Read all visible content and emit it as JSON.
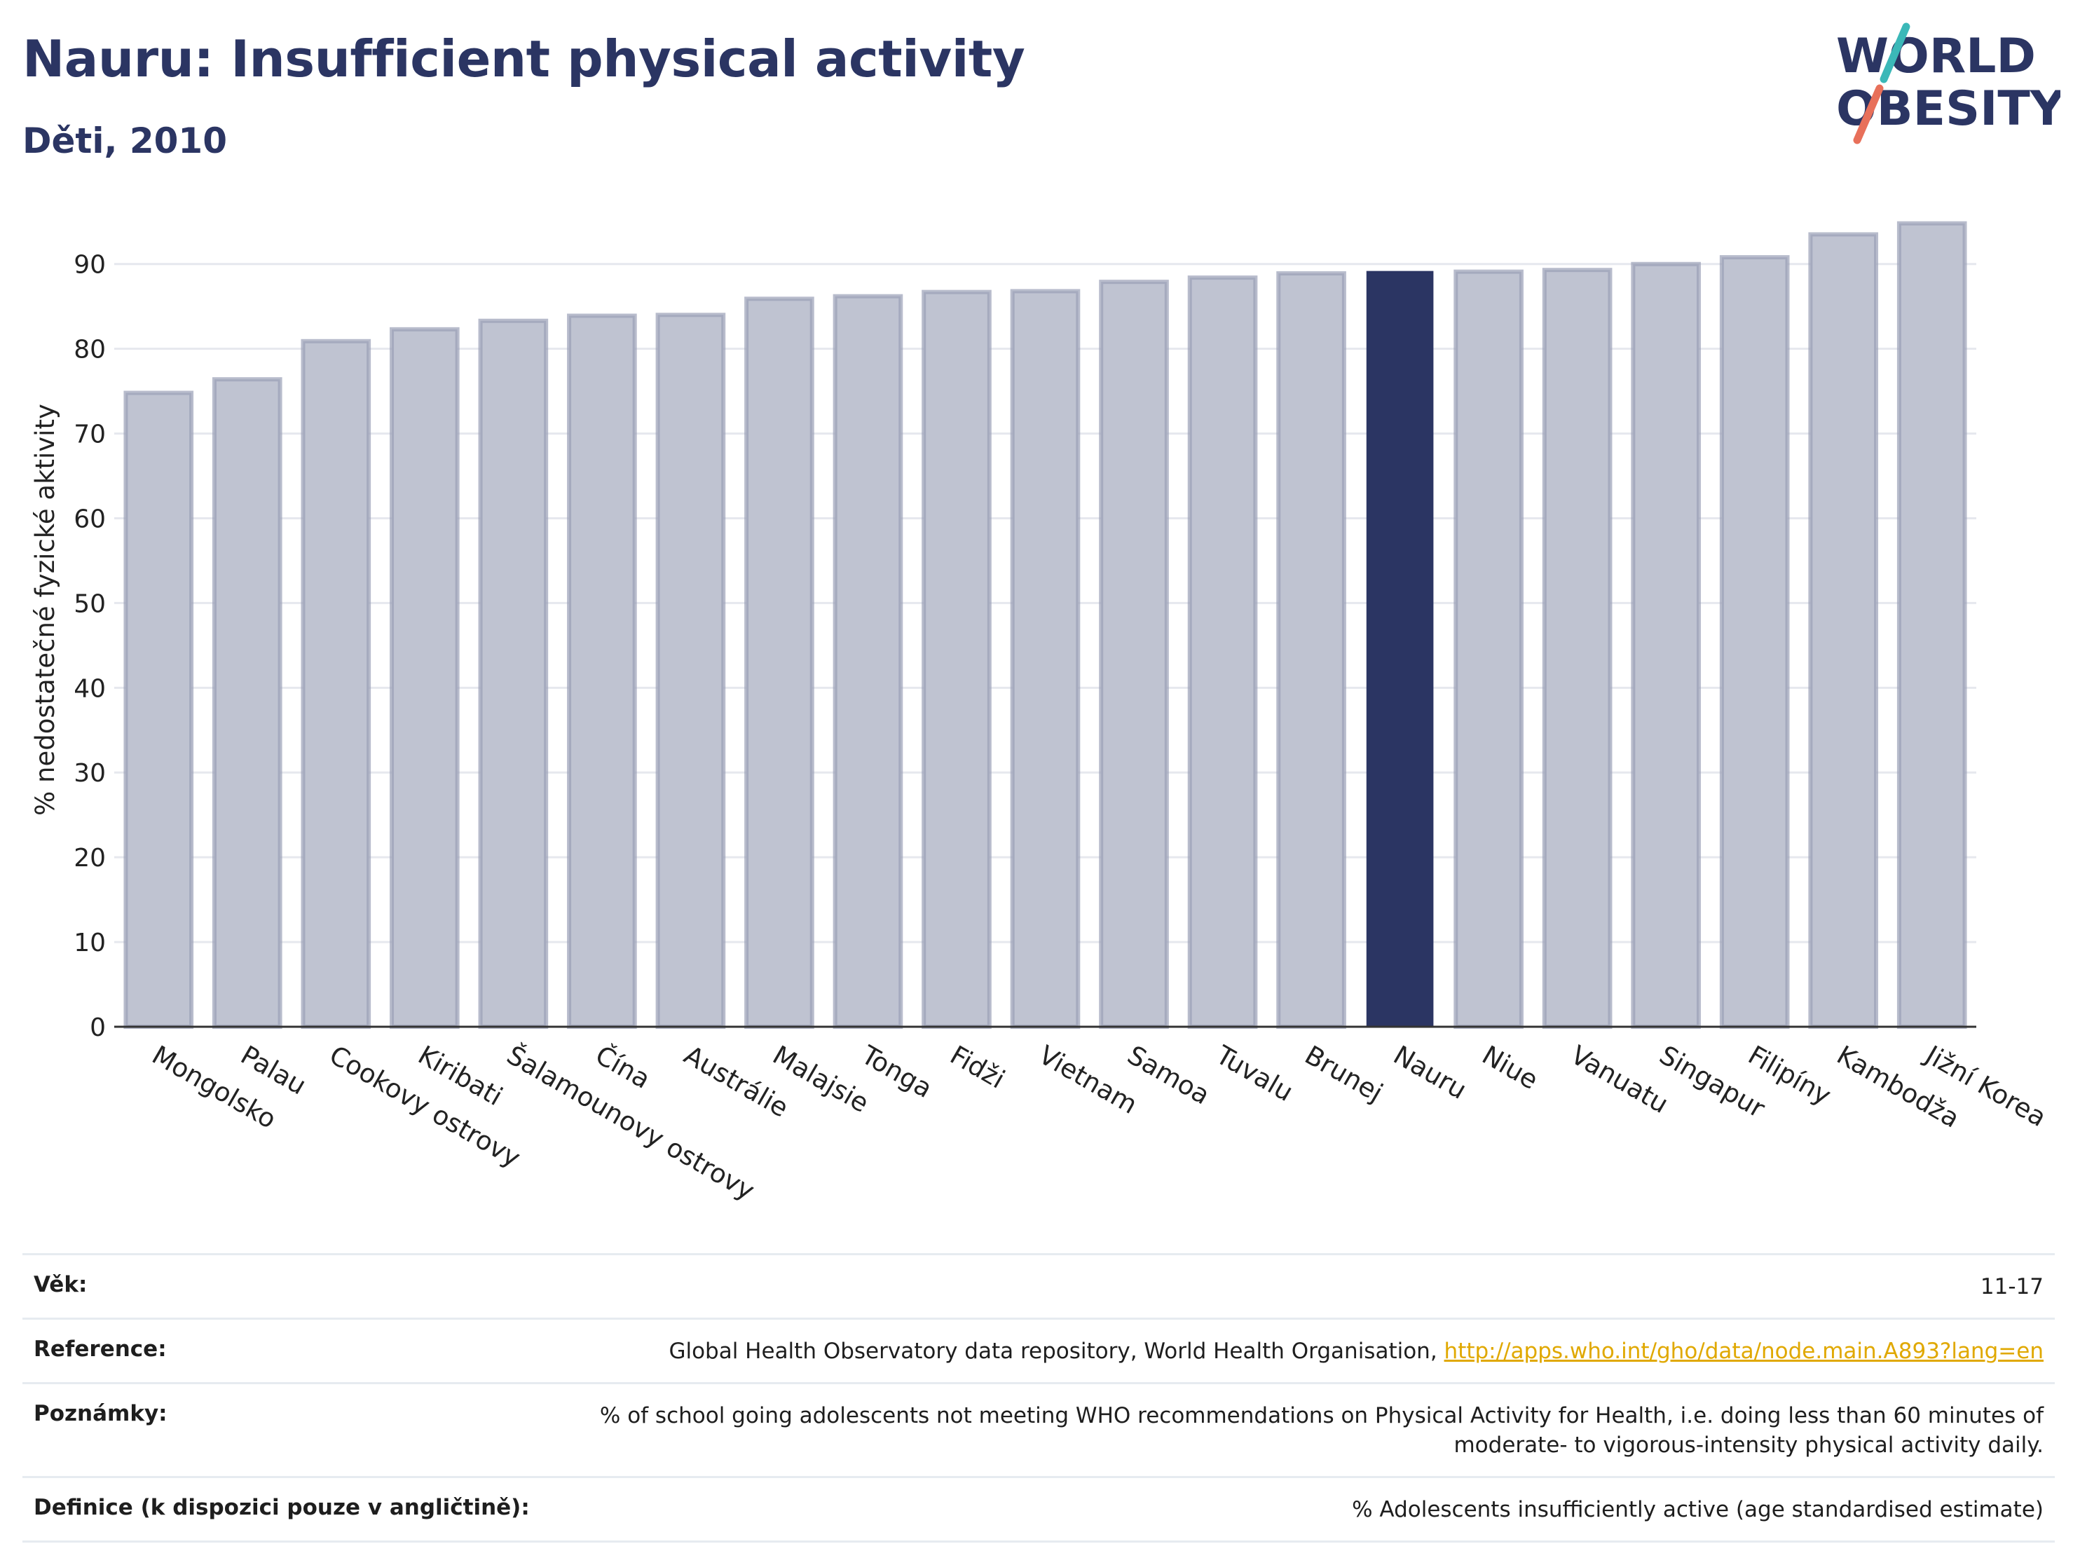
{
  "header": {
    "title": "Nauru: Insufficient physical activity",
    "subtitle": "Děti, 2010"
  },
  "logo": {
    "line1": "WORLD",
    "line2": "OBESITY",
    "colors": {
      "text": "#2b3563",
      "slash_teal": "#3bb8b8",
      "slash_coral": "#e8705a"
    }
  },
  "colors": {
    "bar_default": "#bfc3d1",
    "bar_default_stroke": "#9aa0b6",
    "bar_highlight": "#2b3563",
    "grid": "#e6e8ee",
    "axis": "#333333"
  },
  "chart_data": {
    "type": "bar",
    "categories": [
      "Mongolsko",
      "Palau",
      "Cookovy ostrovy",
      "Kiribati",
      "Šalamounovy ostrovy",
      "Čína",
      "Austrálie",
      "Malajsie",
      "Tonga",
      "Fidži",
      "Vietnam",
      "Samoa",
      "Tuvalu",
      "Brunej",
      "Nauru",
      "Niue",
      "Vanuatu",
      "Singapur",
      "Filipíny",
      "Kambodža",
      "Jižní Korea"
    ],
    "values": [
      74.8,
      76.4,
      80.9,
      82.3,
      83.3,
      83.9,
      84.0,
      85.9,
      86.2,
      86.7,
      86.8,
      87.9,
      88.4,
      88.9,
      89.1,
      89.1,
      89.3,
      90.0,
      90.8,
      93.5,
      94.8
    ],
    "highlight": "Nauru",
    "xlabel": "",
    "ylabel": "% nedostatečné fyzické aktivity",
    "ylim": [
      0,
      98
    ],
    "yticks": [
      0,
      10,
      20,
      30,
      40,
      50,
      60,
      70,
      80,
      90
    ],
    "grid": true,
    "legend": "none"
  },
  "meta": {
    "rows": [
      {
        "label": "Věk:",
        "value": "11-17"
      },
      {
        "label": "Reference:",
        "value": "Global Health Observatory data repository, World Health Organisation, ",
        "link": "http://apps.who.int/gho/data/node.main.A893?lang=en"
      },
      {
        "label": "Poznámky:",
        "value": "% of school going adolescents not meeting WHO recommendations on Physical Activity for Health, i.e. doing less than 60 minutes of moderate- to vigorous-intensity physical activity daily."
      },
      {
        "label": "Definice (k dispozici pouze v angličtině):",
        "value": "% Adolescents insufficiently active (age standardised estimate)"
      }
    ]
  }
}
